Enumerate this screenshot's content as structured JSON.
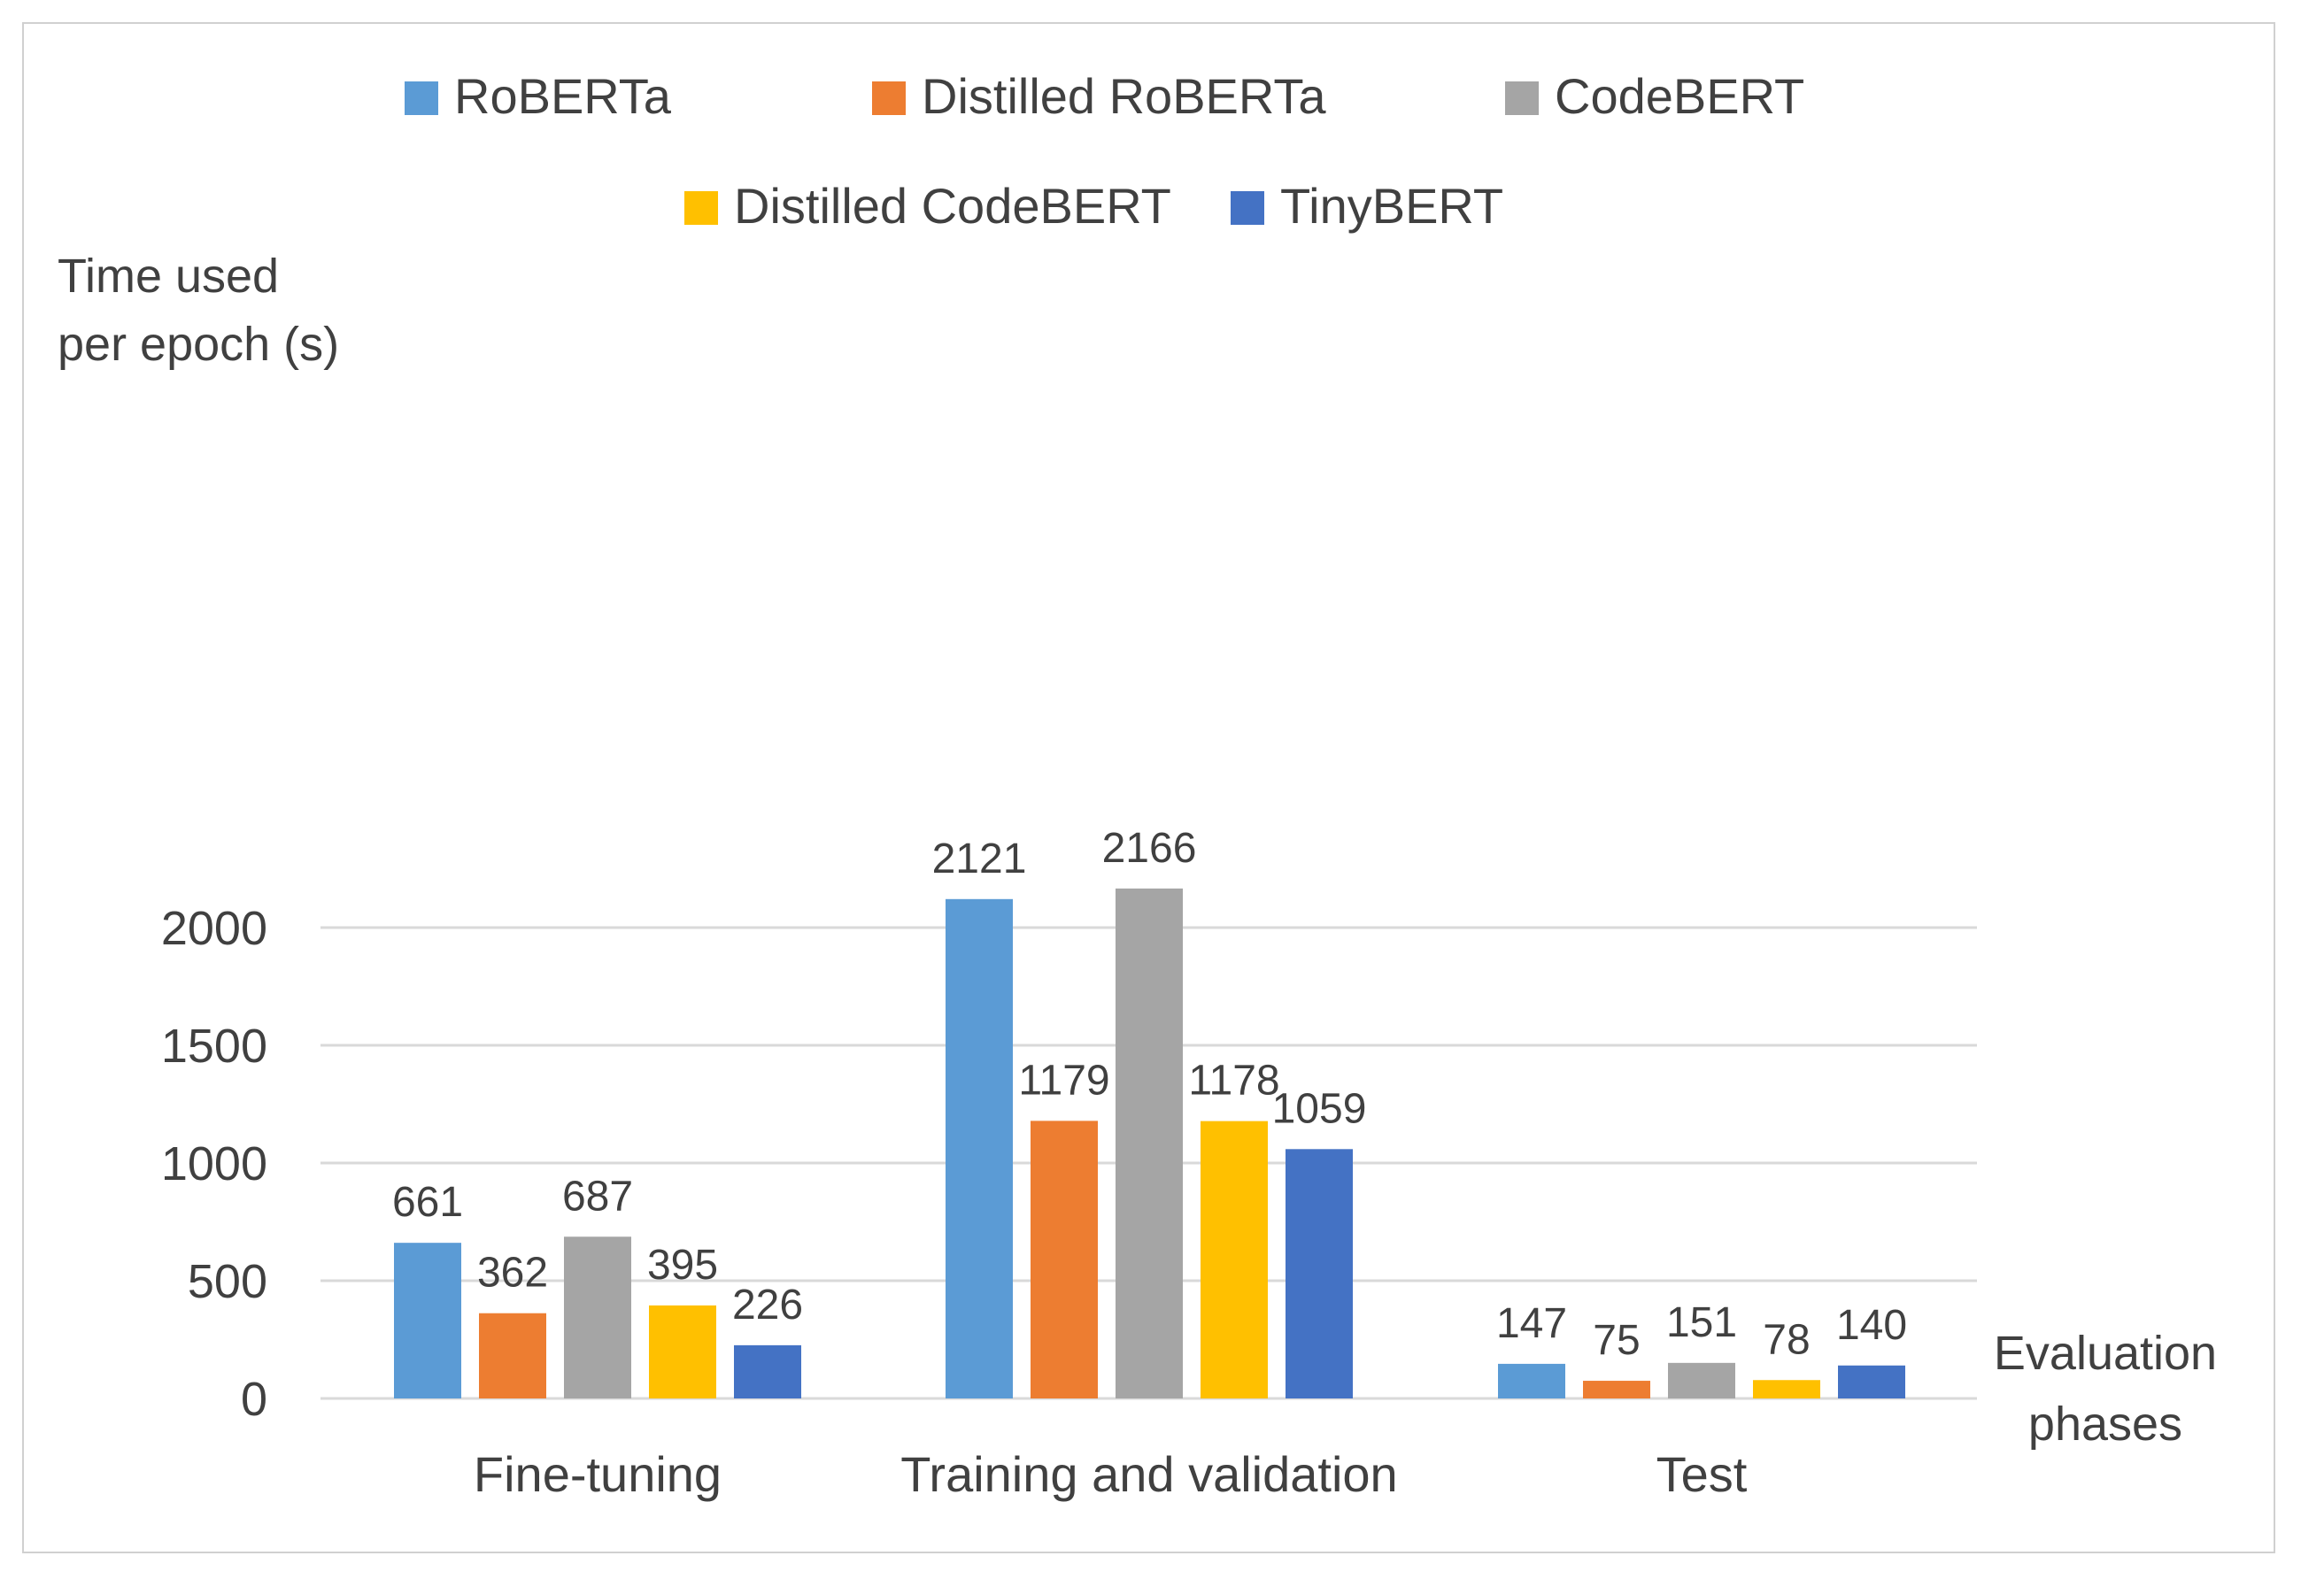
{
  "chart_data": {
    "type": "bar",
    "title": "",
    "ylabel_lines": [
      "Time used",
      "per epoch (s)"
    ],
    "xlabel_lines": [
      "Evaluation",
      "phases"
    ],
    "categories": [
      "Fine-tuning",
      "Training and validation",
      "Test"
    ],
    "ylim": [
      0,
      2000
    ],
    "yticks": [
      0,
      500,
      1000,
      1500,
      2000
    ],
    "grid": true,
    "legend_position": "top",
    "series": [
      {
        "name": "RoBERTa",
        "color": "#5B9BD5",
        "values": [
          661,
          2121,
          147
        ]
      },
      {
        "name": "Distilled RoBERTa",
        "color": "#ED7D31",
        "values": [
          362,
          1179,
          75
        ]
      },
      {
        "name": "CodeBERT",
        "color": "#A5A5A5",
        "values": [
          687,
          2166,
          151
        ]
      },
      {
        "name": "Distilled CodeBERT",
        "color": "#FFC000",
        "values": [
          395,
          1178,
          78
        ]
      },
      {
        "name": "TinyBERT",
        "color": "#4472C4",
        "values": [
          226,
          1059,
          140
        ]
      }
    ]
  }
}
